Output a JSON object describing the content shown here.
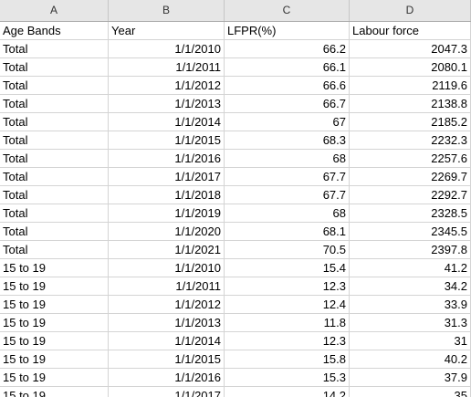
{
  "column_headers": [
    "A",
    "B",
    "C",
    "D"
  ],
  "table": {
    "headers": [
      "Age Bands",
      "Year",
      "LFPR(%)",
      "Labour force"
    ],
    "rows": [
      [
        "Total",
        "1/1/2010",
        "66.2",
        "2047.3"
      ],
      [
        "Total",
        "1/1/2011",
        "66.1",
        "2080.1"
      ],
      [
        "Total",
        "1/1/2012",
        "66.6",
        "2119.6"
      ],
      [
        "Total",
        "1/1/2013",
        "66.7",
        "2138.8"
      ],
      [
        "Total",
        "1/1/2014",
        "67",
        "2185.2"
      ],
      [
        "Total",
        "1/1/2015",
        "68.3",
        "2232.3"
      ],
      [
        "Total",
        "1/1/2016",
        "68",
        "2257.6"
      ],
      [
        "Total",
        "1/1/2017",
        "67.7",
        "2269.7"
      ],
      [
        "Total",
        "1/1/2018",
        "67.7",
        "2292.7"
      ],
      [
        "Total",
        "1/1/2019",
        "68",
        "2328.5"
      ],
      [
        "Total",
        "1/1/2020",
        "68.1",
        "2345.5"
      ],
      [
        "Total",
        "1/1/2021",
        "70.5",
        "2397.8"
      ],
      [
        "15 to 19",
        "1/1/2010",
        "15.4",
        "41.2"
      ],
      [
        "15 to 19",
        "1/1/2011",
        "12.3",
        "34.2"
      ],
      [
        "15 to 19",
        "1/1/2012",
        "12.4",
        "33.9"
      ],
      [
        "15 to 19",
        "1/1/2013",
        "11.8",
        "31.3"
      ],
      [
        "15 to 19",
        "1/1/2014",
        "12.3",
        "31"
      ],
      [
        "15 to 19",
        "1/1/2015",
        "15.8",
        "40.2"
      ],
      [
        "15 to 19",
        "1/1/2016",
        "15.3",
        "37.9"
      ],
      [
        "15 to 19",
        "1/1/2017",
        "14.2",
        "35"
      ]
    ]
  }
}
